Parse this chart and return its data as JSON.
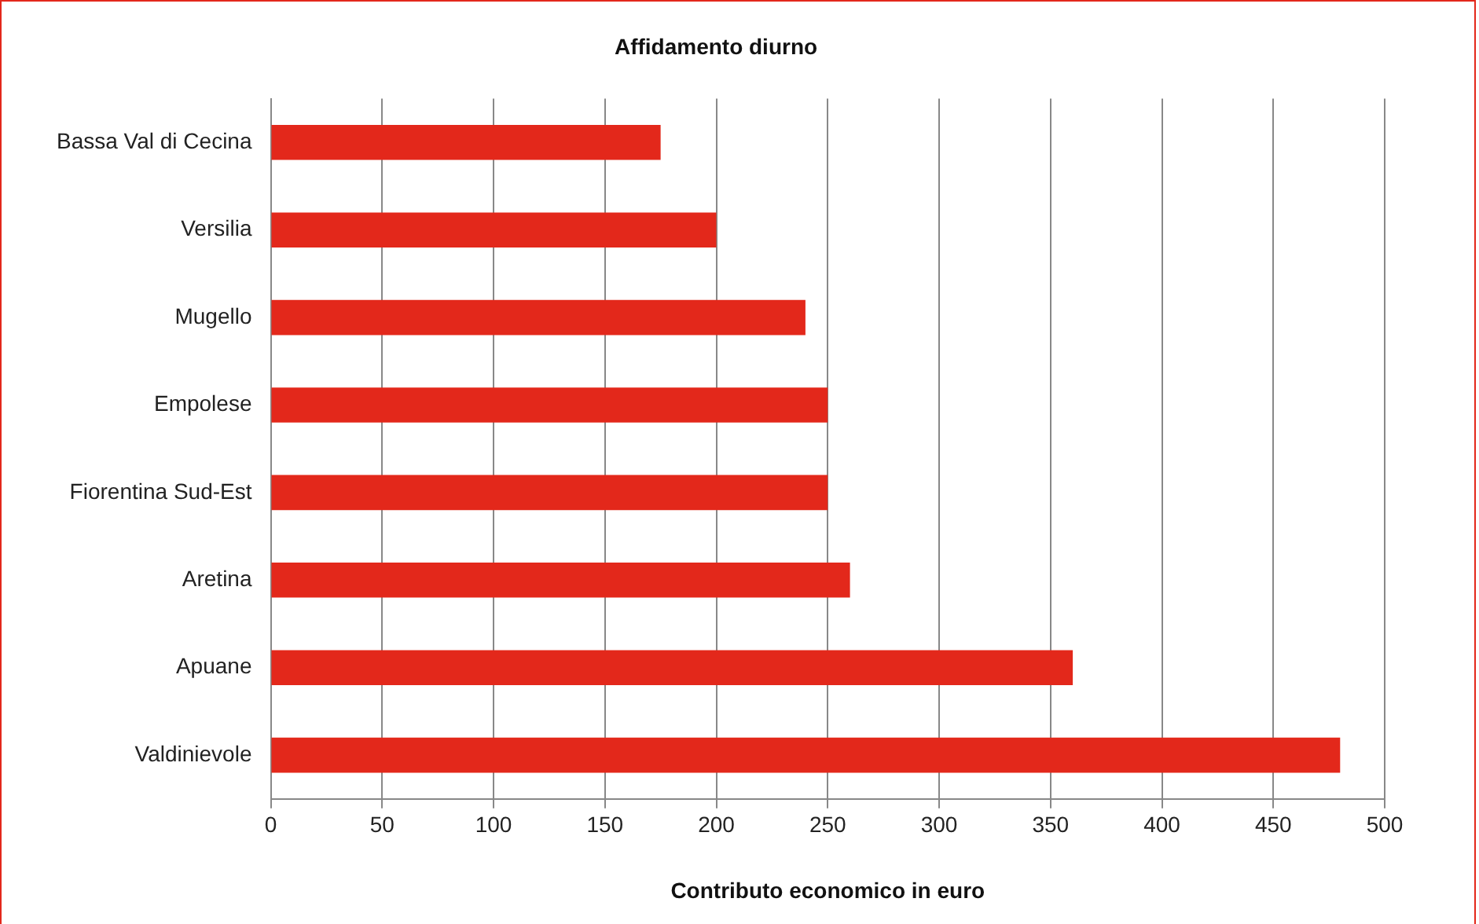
{
  "chart_data": {
    "type": "bar",
    "orientation": "horizontal",
    "title": "Affidamento diurno",
    "xlabel": "Contributo economico in euro",
    "categories": [
      "Bassa Val di Cecina",
      "Versilia",
      "Mugello",
      "Empolese",
      "Fiorentina Sud-Est",
      "Aretina",
      "Apuane",
      "Valdinievole"
    ],
    "values": [
      175,
      200,
      240,
      250,
      250,
      260,
      360,
      480
    ],
    "color": "#e3281b",
    "xlim": [
      0,
      500
    ],
    "xticks": [
      0,
      50,
      100,
      150,
      200,
      250,
      300,
      350,
      400,
      450,
      500
    ],
    "grid": "x",
    "legend": false
  }
}
